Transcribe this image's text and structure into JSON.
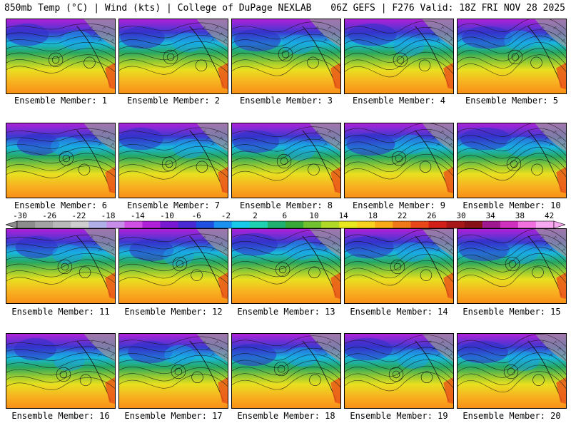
{
  "header": {
    "left": "850mb Temp (°C) | Wind (kts) | College of DuPage NEXLAB",
    "right": "06Z GEFS | F276 Valid: 18Z FRI NOV 28 2025"
  },
  "panels": [
    {
      "label": "Ensemble Member: 1"
    },
    {
      "label": "Ensemble Member: 2"
    },
    {
      "label": "Ensemble Member: 3"
    },
    {
      "label": "Ensemble Member: 4"
    },
    {
      "label": "Ensemble Member: 5"
    },
    {
      "label": "Ensemble Member: 6"
    },
    {
      "label": "Ensemble Member: 7"
    },
    {
      "label": "Ensemble Member: 8"
    },
    {
      "label": "Ensemble Member: 9"
    },
    {
      "label": "Ensemble Member: 10"
    },
    {
      "label": "Ensemble Member: 11"
    },
    {
      "label": "Ensemble Member: 12"
    },
    {
      "label": "Ensemble Member: 13"
    },
    {
      "label": "Ensemble Member: 14"
    },
    {
      "label": "Ensemble Member: 15"
    },
    {
      "label": "Ensemble Member: 16"
    },
    {
      "label": "Ensemble Member: 17"
    },
    {
      "label": "Ensemble Member: 18"
    },
    {
      "label": "Ensemble Member: 19"
    },
    {
      "label": "Ensemble Member: 20"
    }
  ],
  "colorbar": {
    "ticks": [
      "-30",
      "-26",
      "-22",
      "-18",
      "-14",
      "-10",
      "-6",
      "-2",
      "2",
      "6",
      "10",
      "14",
      "18",
      "22",
      "26",
      "30",
      "34",
      "38",
      "42"
    ],
    "colors": [
      "#8c8c8c",
      "#a3a3a3",
      "#b9b9b9",
      "#cfcfcf",
      "#b0b0e8",
      "#c88de8",
      "#d24fe6",
      "#b020d8",
      "#7a1ad0",
      "#4a2ad0",
      "#2050e0",
      "#1a90f0",
      "#18c8e8",
      "#20d0b0",
      "#20b070",
      "#38a838",
      "#70c030",
      "#b0d828",
      "#e8e820",
      "#f8d020",
      "#f8a818",
      "#f07818",
      "#e84818",
      "#d02018",
      "#a81818",
      "#881018",
      "#a01890",
      "#d030c0",
      "#f070e0",
      "#f8a8f0"
    ]
  }
}
